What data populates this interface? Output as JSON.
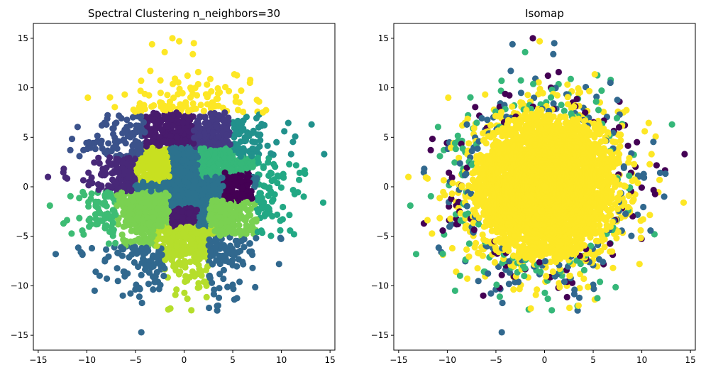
{
  "chart_data": [
    {
      "type": "scatter",
      "title": "Spectral Clustering n_neighbors=30",
      "xlabel": "",
      "ylabel": "",
      "xlim": [
        -15.5,
        15.5
      ],
      "ylim": [
        -16.5,
        16.5
      ],
      "xticks": [
        -15,
        -10,
        -5,
        0,
        5,
        10,
        15
      ],
      "yticks": [
        -15,
        -10,
        -5,
        0,
        5,
        10,
        15
      ],
      "grid": false,
      "colormap": "viridis",
      "color_mode": "region",
      "n_points": 4000,
      "cloud": {
        "center": [
          0,
          0
        ],
        "spread": 5
      },
      "outliers": [
        {
          "x": -1.2,
          "y": 15.0
        },
        {
          "x": -0.5,
          "y": 14.7
        },
        {
          "x": -3.3,
          "y": 14.4
        },
        {
          "x": 1.0,
          "y": 14.5
        },
        {
          "x": -2.0,
          "y": 13.6
        },
        {
          "x": 0.9,
          "y": 13.4
        },
        {
          "x": 13.1,
          "y": 6.3
        },
        {
          "x": 14.4,
          "y": 3.3
        },
        {
          "x": -14.0,
          "y": 1.0
        },
        {
          "x": -13.8,
          "y": -1.9
        },
        {
          "x": 14.3,
          "y": -1.6
        },
        {
          "x": -13.2,
          "y": -6.8
        },
        {
          "x": -9.2,
          "y": -10.5
        },
        {
          "x": -6.3,
          "y": -11.0
        },
        {
          "x": -4.6,
          "y": -11.1
        },
        {
          "x": 3.4,
          "y": -12.5
        },
        {
          "x": -4.4,
          "y": -14.7
        },
        {
          "x": 5.0,
          "y": -9.9
        },
        {
          "x": 10.3,
          "y": 5.6
        },
        {
          "x": 11.0,
          "y": 3.3
        },
        {
          "x": 12.3,
          "y": -1.0
        },
        {
          "x": 11.3,
          "y": -4.8
        },
        {
          "x": -12.4,
          "y": -3.7
        },
        {
          "x": -11.7,
          "y": 3.7
        },
        {
          "x": 7.7,
          "y": 8.6
        },
        {
          "x": -9.9,
          "y": 9.0
        },
        {
          "x": 6.8,
          "y": 10.8
        },
        {
          "x": 2.3,
          "y": -10.0
        }
      ],
      "region_colors": {
        "top": "#fde725",
        "upper_left": "#3b528b",
        "left_mid": "#482878",
        "left_low": "#3dbc74",
        "bottom_left": "#31688e",
        "bottom_center": "#b5de2b",
        "bottom_right": "#31688e",
        "right": "#22a884",
        "right_mid": "#21918c",
        "center_dark": "#440154",
        "center_purple": "#481b6d",
        "upper_right": "#443983",
        "center_lime": "#c8e020",
        "center_green": "#35b779",
        "center_teal": "#2c728e",
        "center_light": "#7ad151"
      }
    },
    {
      "type": "scatter",
      "title": "Isomap",
      "xlabel": "",
      "ylabel": "",
      "xlim": [
        -15.5,
        15.5
      ],
      "ylim": [
        -16.5,
        16.5
      ],
      "xticks": [
        -15,
        -10,
        -5,
        0,
        5,
        10,
        15
      ],
      "yticks": [
        -15,
        -10,
        -5,
        0,
        5,
        10,
        15
      ],
      "grid": false,
      "colormap": "viridis",
      "color_mode": "radial",
      "n_points": 4000,
      "cloud": {
        "center": [
          0,
          0
        ],
        "spread": 5
      },
      "radial_colors": [
        "#fde725",
        "#35b779",
        "#31688e",
        "#440154"
      ],
      "outliers_same_as": 0
    }
  ]
}
